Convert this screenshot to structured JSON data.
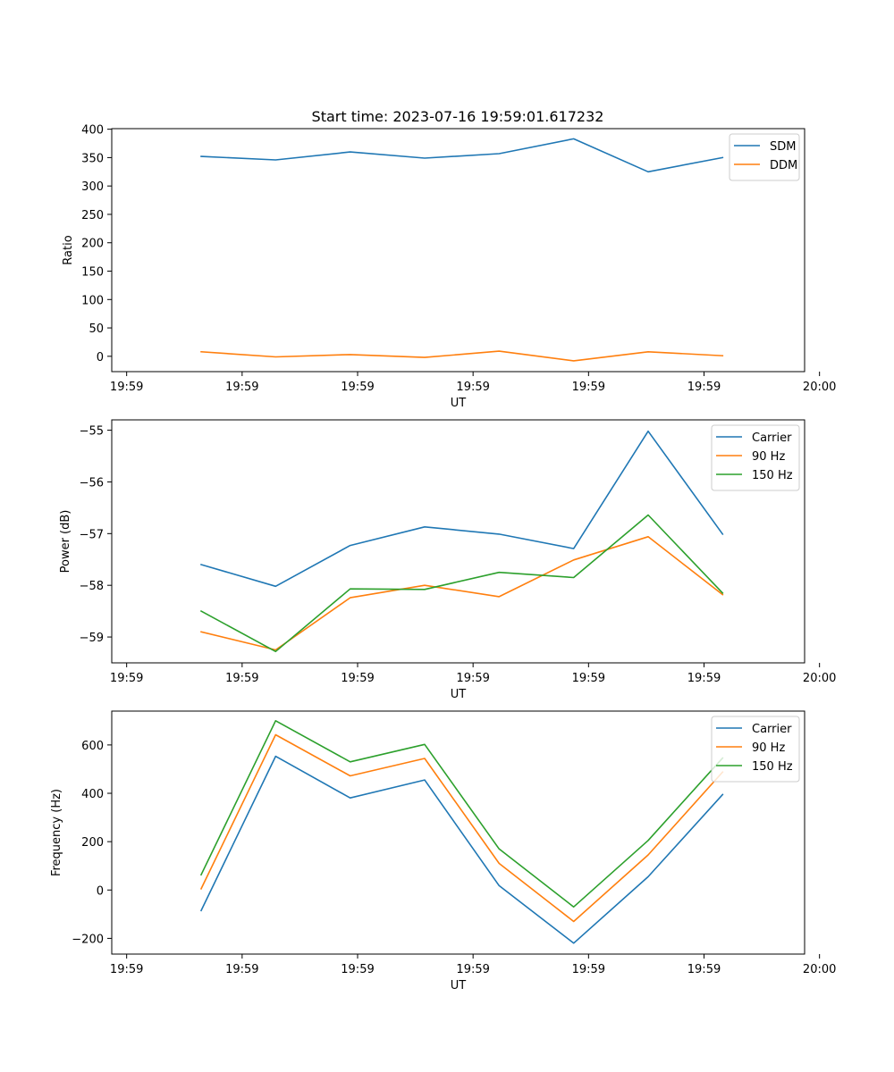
{
  "chart_data": [
    {
      "type": "line",
      "title": "Start time: 2023-07-16 19:59:01.617232",
      "xlabel": "UT",
      "ylabel": "Ratio",
      "xlim": [
        -0.2,
        9.1
      ],
      "x": [
        1,
        2,
        3,
        4,
        5,
        6,
        7,
        8
      ],
      "x_ticks": [
        0,
        1.55,
        3.1,
        4.65,
        6.2,
        7.75,
        9.3
      ],
      "x_tick_labels": [
        "19:59",
        "19:59",
        "19:59",
        "19:59",
        "19:59",
        "19:59",
        "20:00"
      ],
      "ylim": [
        -27,
        401
      ],
      "y_ticks": [
        0,
        50,
        100,
        150,
        200,
        250,
        300,
        350,
        400
      ],
      "y_tick_labels": [
        "0",
        "50",
        "100",
        "150",
        "200",
        "250",
        "300",
        "350",
        "400"
      ],
      "legend_position": "top-right",
      "series": [
        {
          "name": "SDM",
          "color": "#1f77b4",
          "values": [
            352,
            346,
            360,
            349,
            357,
            383,
            325,
            350
          ]
        },
        {
          "name": "DDM",
          "color": "#ff7f0e",
          "values": [
            8,
            -1,
            3,
            -2,
            9,
            -8,
            8,
            1
          ]
        }
      ]
    },
    {
      "type": "line",
      "title": "",
      "xlabel": "UT",
      "ylabel": "Power (dB)",
      "xlim": [
        -0.2,
        9.1
      ],
      "x": [
        1,
        2,
        3,
        4,
        5,
        6,
        7,
        8
      ],
      "x_ticks": [
        0,
        1.55,
        3.1,
        4.65,
        6.2,
        7.75,
        9.3
      ],
      "x_tick_labels": [
        "19:59",
        "19:59",
        "19:59",
        "19:59",
        "19:59",
        "19:59",
        "20:00"
      ],
      "ylim": [
        -59.5,
        -54.8
      ],
      "y_ticks": [
        -59,
        -58,
        -57,
        -56,
        -55
      ],
      "y_tick_labels": [
        "−59",
        "−58",
        "−57",
        "−56",
        "−55"
      ],
      "legend_position": "top-right",
      "series": [
        {
          "name": "Carrier",
          "color": "#1f77b4",
          "values": [
            -57.6,
            -58.02,
            -57.23,
            -56.87,
            -57.01,
            -57.29,
            -55.02,
            -57.01
          ]
        },
        {
          "name": "90 Hz",
          "color": "#ff7f0e",
          "values": [
            -58.9,
            -59.25,
            -58.24,
            -58.0,
            -58.22,
            -57.51,
            -57.06,
            -58.18
          ]
        },
        {
          "name": "150 Hz",
          "color": "#2ca02c",
          "values": [
            -58.5,
            -59.28,
            -58.07,
            -58.08,
            -57.75,
            -57.85,
            -56.64,
            -58.15
          ]
        }
      ]
    },
    {
      "type": "line",
      "title": "",
      "xlabel": "UT",
      "ylabel": "Frequency (Hz)",
      "xlim": [
        -0.2,
        9.1
      ],
      "x": [
        1,
        2,
        3,
        4,
        5,
        6,
        7,
        8
      ],
      "x_ticks": [
        0,
        1.55,
        3.1,
        4.65,
        6.2,
        7.75,
        9.3
      ],
      "x_tick_labels": [
        "19:59",
        "19:59",
        "19:59",
        "19:59",
        "19:59",
        "19:59",
        "20:00"
      ],
      "ylim": [
        -265,
        740
      ],
      "y_ticks": [
        -200,
        0,
        200,
        400,
        600
      ],
      "y_tick_labels": [
        "−200",
        "0",
        "200",
        "400",
        "600"
      ],
      "legend_position": "top-right",
      "series": [
        {
          "name": "Carrier",
          "color": "#1f77b4",
          "values": [
            -85,
            553,
            381,
            455,
            18,
            -220,
            55,
            395
          ]
        },
        {
          "name": "90 Hz",
          "color": "#ff7f0e",
          "values": [
            5,
            642,
            472,
            544,
            110,
            -130,
            145,
            488
          ]
        },
        {
          "name": "150 Hz",
          "color": "#2ca02c",
          "values": [
            63,
            700,
            530,
            602,
            170,
            -70,
            205,
            546
          ]
        }
      ]
    }
  ]
}
